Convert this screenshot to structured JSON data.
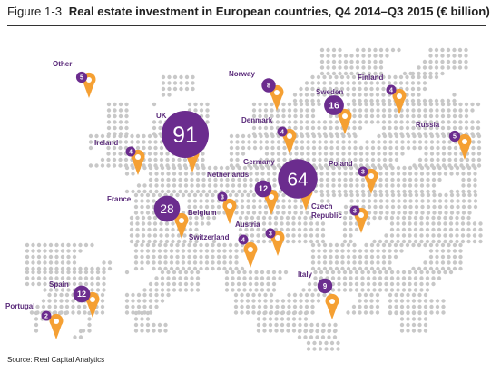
{
  "figure": {
    "label": "Figure 1-3",
    "title": "Real estate investment in European countries, Q4 2014–Q3 2015 (€ billion)",
    "source": "Source: Real Capital Analytics"
  },
  "colors": {
    "bubble": "#6b2c8e",
    "pin": "#f5a033",
    "pin_center": "#ffffff",
    "map_dots": "#c8c8c8",
    "label_text": "#5a2a7a"
  },
  "chart_data": {
    "type": "map-bubble",
    "title": "Real estate investment in European countries, Q4 2014–Q3 2015 (€ billion)",
    "unit": "€ billion",
    "countries": [
      {
        "name": "Other",
        "value": 5
      },
      {
        "name": "Norway",
        "value": 8
      },
      {
        "name": "Sweden",
        "value": 16
      },
      {
        "name": "Finland",
        "value": 4
      },
      {
        "name": "UK",
        "value": 91
      },
      {
        "name": "Denmark",
        "value": 4
      },
      {
        "name": "Russia",
        "value": 5
      },
      {
        "name": "Ireland",
        "value": 4
      },
      {
        "name": "Germany",
        "value": 64
      },
      {
        "name": "Poland",
        "value": 3
      },
      {
        "name": "Netherlands",
        "value": 12
      },
      {
        "name": "France",
        "value": 28
      },
      {
        "name": "Belgium",
        "value": 3
      },
      {
        "name": "Czech Republic",
        "value": 3
      },
      {
        "name": "Austria",
        "value": 3
      },
      {
        "name": "Switzerland",
        "value": 4
      },
      {
        "name": "Italy",
        "value": 9
      },
      {
        "name": "Spain",
        "value": 12
      },
      {
        "name": "Portugal",
        "value": 2
      }
    ]
  }
}
